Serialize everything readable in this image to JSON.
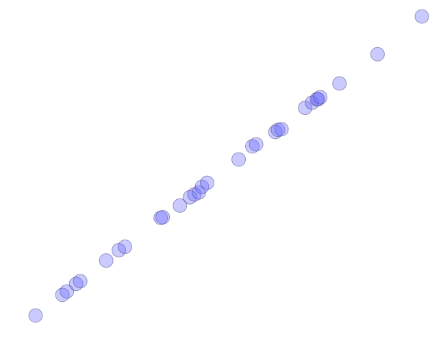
{
  "chart_data": {
    "type": "scatter",
    "title": "",
    "xlabel": "",
    "ylabel": "",
    "grid": false,
    "legend": "none",
    "axes_visible": false,
    "xlim": [
      0,
      1
    ],
    "ylim": [
      0,
      1
    ],
    "marker": {
      "fill": "#6666ff",
      "fill_opacity": 0.35,
      "stroke": "#3f3f7f",
      "stroke_opacity": 0.5
    },
    "series": [
      {
        "points": [
          {
            "x": 0.0,
            "y": 0.0
          },
          {
            "x": 0.0694,
            "y": 0.069
          },
          {
            "x": 0.081,
            "y": 0.0805
          },
          {
            "x": 0.1048,
            "y": 0.1057
          },
          {
            "x": 0.1155,
            "y": 0.1149
          },
          {
            "x": 0.1828,
            "y": 0.1839
          },
          {
            "x": 0.2155,
            "y": 0.2184
          },
          {
            "x": 0.2315,
            "y": 0.2299
          },
          {
            "x": 0.3239,
            "y": 0.3264
          },
          {
            "x": 0.3292,
            "y": 0.3287
          },
          {
            "x": 0.3737,
            "y": 0.3678
          },
          {
            "x": 0.3996,
            "y": 0.3954
          },
          {
            "x": 0.4111,
            "y": 0.4046
          },
          {
            "x": 0.4227,
            "y": 0.4115
          },
          {
            "x": 0.4307,
            "y": 0.4299
          },
          {
            "x": 0.444,
            "y": 0.4437
          },
          {
            "x": 0.5258,
            "y": 0.5218
          },
          {
            "x": 0.5613,
            "y": 0.5655
          },
          {
            "x": 0.571,
            "y": 0.5724
          },
          {
            "x": 0.6208,
            "y": 0.6138
          },
          {
            "x": 0.6279,
            "y": 0.6207
          },
          {
            "x": 0.6368,
            "y": 0.623
          },
          {
            "x": 0.698,
            "y": 0.6943
          },
          {
            "x": 0.7158,
            "y": 0.7115
          },
          {
            "x": 0.7282,
            "y": 0.723
          },
          {
            "x": 0.7317,
            "y": 0.723
          },
          {
            "x": 0.737,
            "y": 0.7299
          },
          {
            "x": 0.7869,
            "y": 0.7759
          },
          {
            "x": 0.8855,
            "y": 0.8736
          },
          {
            "x": 1.0,
            "y": 1.0
          }
        ]
      }
    ]
  }
}
